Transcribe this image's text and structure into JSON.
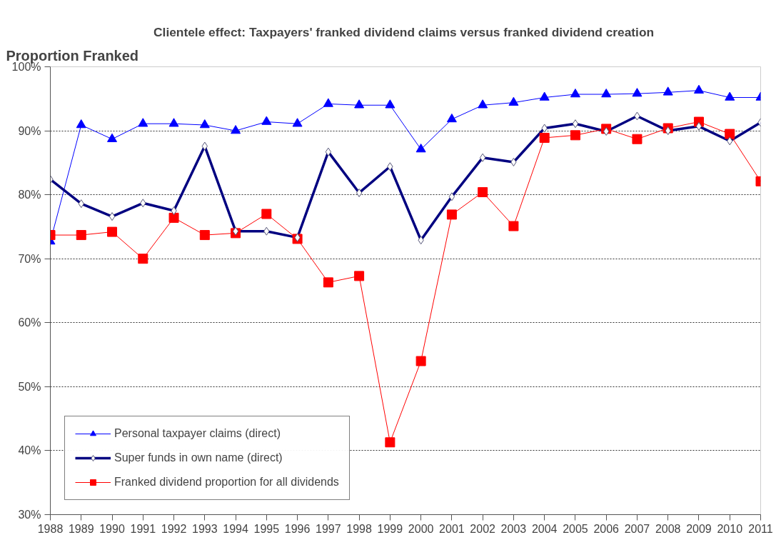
{
  "chart_data": {
    "type": "line",
    "title": "Clientele effect: Taxpayers'  franked dividend claims versus franked dividend creation",
    "ylabel": "Proportion Franked",
    "x": [
      1988,
      1989,
      1990,
      1991,
      1992,
      1993,
      1994,
      1995,
      1996,
      1997,
      1998,
      1999,
      2000,
      2001,
      2002,
      2003,
      2004,
      2005,
      2006,
      2007,
      2008,
      2009,
      2010,
      2011
    ],
    "xlim": [
      1988,
      2011
    ],
    "xticks": [
      1988,
      1989,
      1990,
      1991,
      1992,
      1993,
      1994,
      1995,
      1996,
      1997,
      1998,
      1999,
      2000,
      2001,
      2002,
      2003,
      2004,
      2005,
      2006,
      2007,
      2008,
      2009,
      2010,
      2011
    ],
    "ylim": [
      30,
      100
    ],
    "yticks": [
      {
        "value": 30,
        "label": "30%"
      },
      {
        "value": 40,
        "label": "40%"
      },
      {
        "value": 50,
        "label": "50%"
      },
      {
        "value": 60,
        "label": "60%"
      },
      {
        "value": 70,
        "label": "70%"
      },
      {
        "value": 80,
        "label": "80%"
      },
      {
        "value": 90,
        "label": "90%"
      },
      {
        "value": 100,
        "label": "100%"
      }
    ],
    "grid": "y",
    "legend": "bottom left",
    "series": [
      {
        "name": "Personal taxpayer claims (direct)",
        "color": "#0000ff",
        "marker": "triangle",
        "values": [
          72.7,
          90.9,
          88.7,
          91.1,
          91.1,
          90.9,
          90.0,
          91.4,
          91.1,
          94.2,
          94.0,
          94.0,
          87.1,
          91.8,
          94.0,
          94.4,
          95.2,
          95.7,
          95.7,
          95.8,
          96.0,
          96.3,
          95.2,
          95.2
        ]
      },
      {
        "name": "Super funds in own name (direct)",
        "color": "#000080",
        "marker": "diamond",
        "values": [
          82.4,
          78.6,
          76.6,
          78.7,
          77.5,
          87.6,
          74.3,
          74.3,
          73.3,
          86.7,
          80.3,
          84.4,
          72.9,
          79.7,
          85.8,
          85.1,
          90.4,
          91.1,
          89.9,
          92.3,
          90.0,
          90.7,
          88.4,
          91.3
        ]
      },
      {
        "name": "Franked dividend proportion for all dividends",
        "color": "#ff0000",
        "marker": "square",
        "values": [
          73.7,
          73.7,
          74.2,
          70.0,
          76.4,
          73.7,
          74.0,
          77.0,
          73.1,
          66.3,
          67.3,
          41.3,
          54.0,
          76.9,
          80.4,
          75.1,
          88.9,
          89.3,
          90.3,
          88.7,
          90.4,
          91.4,
          89.5,
          82.1
        ]
      }
    ]
  }
}
